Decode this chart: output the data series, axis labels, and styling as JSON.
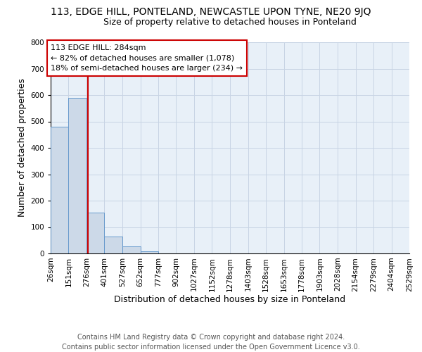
{
  "title": "113, EDGE HILL, PONTELAND, NEWCASTLE UPON TYNE, NE20 9JQ",
  "subtitle": "Size of property relative to detached houses in Ponteland",
  "xlabel": "Distribution of detached houses by size in Ponteland",
  "ylabel": "Number of detached properties",
  "footer_line1": "Contains HM Land Registry data © Crown copyright and database right 2024.",
  "footer_line2": "Contains public sector information licensed under the Open Government Licence v3.0.",
  "bin_edges": [
    26,
    151,
    276,
    401,
    527,
    652,
    777,
    902,
    1027,
    1152,
    1278,
    1403,
    1528,
    1653,
    1778,
    1903,
    2028,
    2154,
    2279,
    2404,
    2529
  ],
  "bar_heights": [
    480,
    590,
    155,
    63,
    27,
    8,
    0,
    0,
    0,
    0,
    0,
    0,
    0,
    0,
    0,
    0,
    0,
    0,
    0,
    0
  ],
  "bar_color": "#ccd9e8",
  "bar_edge_color": "#6699cc",
  "vline_x": 284,
  "vline_color": "#cc0000",
  "annotation_text": "113 EDGE HILL: 284sqm\n← 82% of detached houses are smaller (1,078)\n18% of semi-detached houses are larger (234) →",
  "annotation_box_color": "#ffffff",
  "annotation_box_edge": "#cc0000",
  "ylim": [
    0,
    800
  ],
  "yticks": [
    0,
    100,
    200,
    300,
    400,
    500,
    600,
    700,
    800
  ],
  "grid_color": "#c8d4e4",
  "bg_color": "#e8f0f8",
  "title_fontsize": 10,
  "subtitle_fontsize": 9,
  "label_fontsize": 9,
  "tick_fontsize": 7.5,
  "footer_fontsize": 7,
  "annot_fontsize": 8
}
